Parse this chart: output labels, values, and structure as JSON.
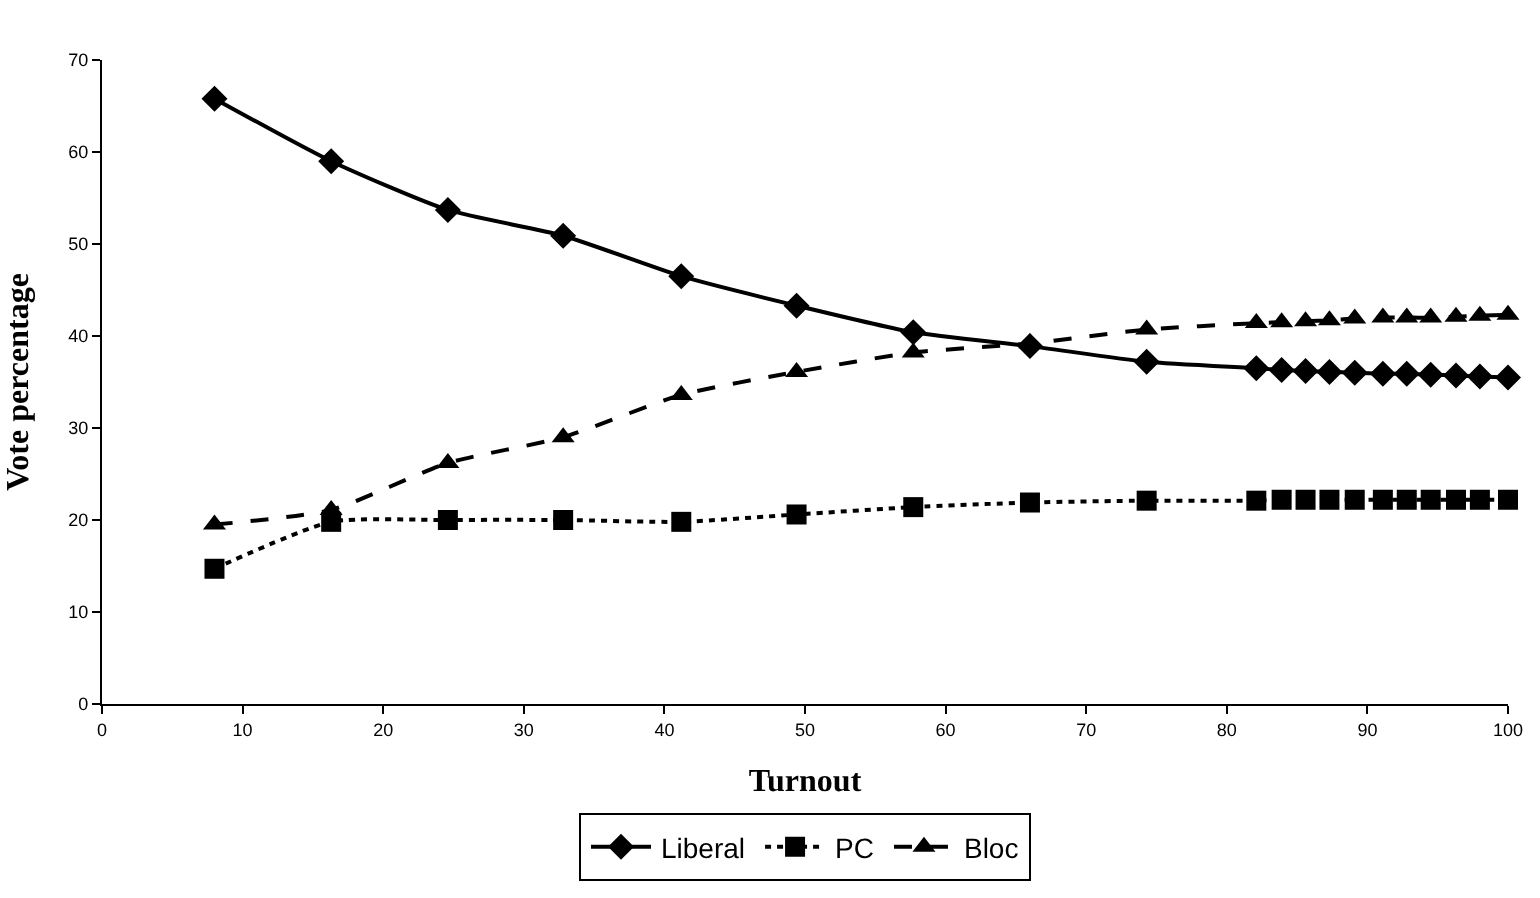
{
  "chart_data": {
    "type": "line",
    "xlabel": "Turnout",
    "ylabel": "Vote percentage",
    "x": [
      8.0,
      16.3,
      24.6,
      32.8,
      41.2,
      49.4,
      57.7,
      66.0,
      74.3,
      82.1,
      83.9,
      85.6,
      87.3,
      89.1,
      91.1,
      92.8,
      94.5,
      96.3,
      98.0,
      100
    ],
    "series": [
      {
        "name": "Liberal",
        "color": "#000000",
        "marker": "diamond",
        "line_style": "solid",
        "values": [
          65.8,
          59,
          53.7,
          50.9,
          46.5,
          43.3,
          40.4,
          38.9,
          37.2,
          36.5,
          36.3,
          36.2,
          36.1,
          36.0,
          35.9,
          35.9,
          35.8,
          35.7,
          35.6,
          35.5
        ]
      },
      {
        "name": "PC",
        "color": "#000000",
        "marker": "square",
        "line_style": "dotted",
        "values": [
          14.7,
          19.8,
          20,
          20,
          19.8,
          20.6,
          21.4,
          21.9,
          22.1,
          22.1,
          22.2,
          22.2,
          22.2,
          22.2,
          22.2,
          22.2,
          22.2,
          22.2,
          22.2,
          22.2
        ]
      },
      {
        "name": "Bloc",
        "color": "#000000",
        "marker": "triangle",
        "line_style": "dashed",
        "values": [
          19.5,
          21.1,
          26.2,
          29,
          33.6,
          36.1,
          38.2,
          39.2,
          40.7,
          41.4,
          41.5,
          41.6,
          41.7,
          41.9,
          42.0,
          42.0,
          42.0,
          42.1,
          42.2,
          42.3
        ]
      }
    ],
    "xlim": [
      0,
      100
    ],
    "xticks": [
      0,
      10,
      20,
      30,
      40,
      50,
      60,
      70,
      80,
      90,
      100
    ],
    "ylim": [
      0,
      70
    ],
    "yticks": [
      0,
      10,
      20,
      30,
      40,
      50,
      60,
      70
    ],
    "legend": "bottom"
  }
}
